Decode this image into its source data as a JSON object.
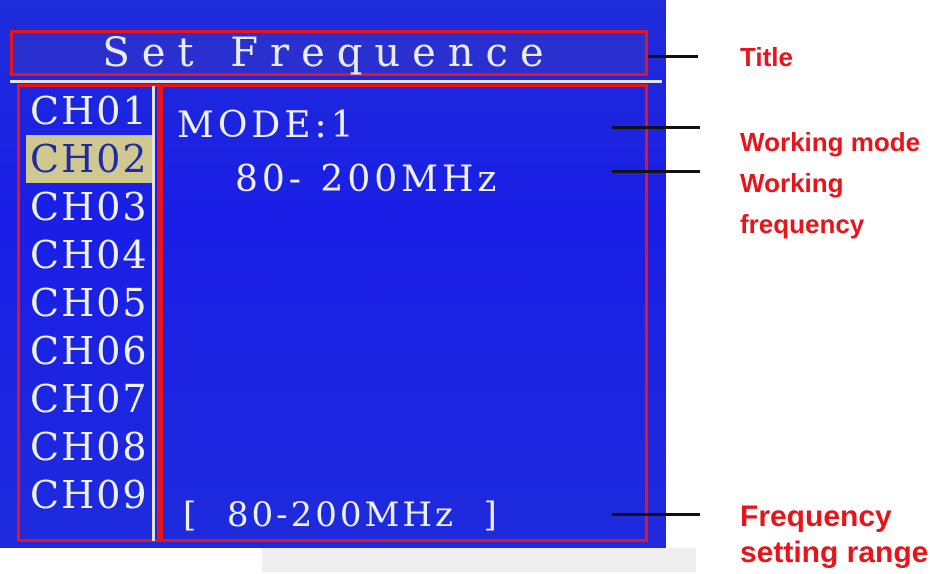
{
  "screen": {
    "title": "Set Frequence",
    "channels": [
      "CH01",
      "CH02",
      "CH03",
      "CH04",
      "CH05",
      "CH06",
      "CH07",
      "CH08",
      "CH09"
    ],
    "selected_channel": "CH02",
    "mode_text": "MODE:1",
    "working_frequency": "80- 200MHz",
    "range_text": "[  80-200MHz  ]"
  },
  "annotations": {
    "title": "Title",
    "working_mode": "Working mode",
    "working_frequency_line1": "Working",
    "working_frequency_line2": "frequency",
    "range_line1": "Frequency",
    "range_line2": "setting range"
  },
  "colors": {
    "screen_blue": "#1a1ee6",
    "highlight": "#e8141a",
    "selected_bg": "#cfc88f"
  }
}
